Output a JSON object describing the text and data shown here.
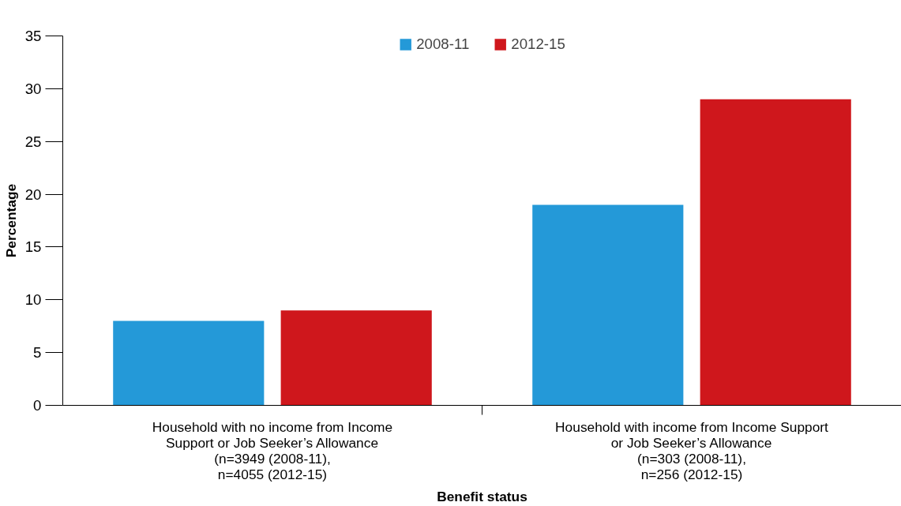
{
  "chart_data": {
    "type": "bar",
    "xlabel": "Benefit status",
    "ylabel": "Percentage",
    "categories": [
      "Household with no income from Income\nSupport or Job Seeker’s Allowance\n(n=3949 (2008-11),\nn=4055 (2012-15)",
      "Household with income from Income Support\nor Job Seeker’s Allowance\n(n=303 (2008-11),\nn=256 (2012-15)"
    ],
    "series": [
      {
        "name": "2008-11",
        "color": "#2499d8",
        "values": [
          8,
          19
        ]
      },
      {
        "name": "2012-15",
        "color": "#cf171c",
        "values": [
          9,
          29
        ]
      }
    ],
    "ylim": [
      0,
      35
    ],
    "yticks": [
      0,
      5,
      10,
      15,
      20,
      25,
      30,
      35
    ],
    "grid": false,
    "legend": "top"
  }
}
